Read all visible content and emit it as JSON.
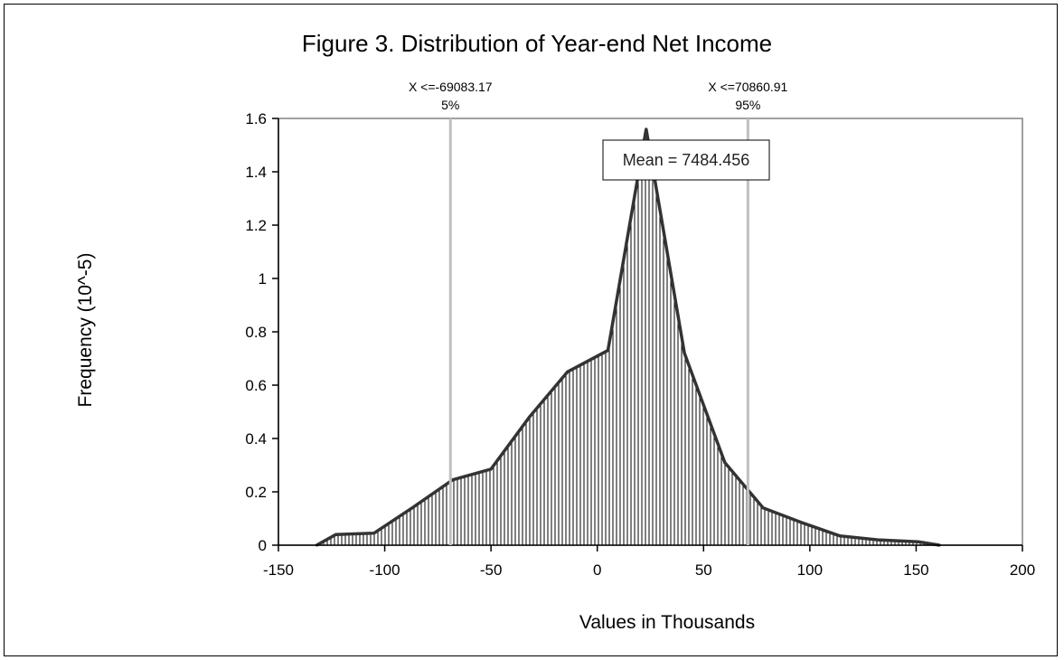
{
  "chart_data": {
    "type": "area",
    "title": "Figure 3. Distribution of Year-end Net Income",
    "xlabel": "Values in Thousands",
    "ylabel": "Frequency (10^-5)",
    "xlim": [
      -150,
      200
    ],
    "ylim": [
      0,
      1.6
    ],
    "x_ticks": [
      -150,
      -100,
      -50,
      0,
      50,
      100,
      150,
      200
    ],
    "x_tick_labels": [
      "-150",
      "-100",
      "-50",
      "0",
      "50",
      "100",
      "150",
      "200"
    ],
    "y_ticks": [
      0,
      0.2,
      0.4,
      0.6,
      0.8,
      1,
      1.2,
      1.4,
      1.6
    ],
    "y_tick_labels": [
      "0",
      "0.2",
      "0.4",
      "0.6",
      "0.8",
      "1",
      "1.2",
      "1.4",
      "1.6"
    ],
    "grid": false,
    "x": [
      -132,
      -123,
      -105,
      -87,
      -68,
      -50,
      -32,
      -14,
      5,
      23,
      41,
      60,
      78,
      96,
      114,
      132,
      151,
      161
    ],
    "y": [
      0,
      0.04,
      0.045,
      0.14,
      0.245,
      0.285,
      0.48,
      0.65,
      0.73,
      1.56,
      0.72,
      0.31,
      0.14,
      0.085,
      0.035,
      0.02,
      0.013,
      0
    ],
    "markers": [
      {
        "x": -69083.17,
        "value_label": "X <=-69083.17",
        "percent_label": "5%"
      },
      {
        "x": 70860.91,
        "value_label": "X <=70860.91",
        "percent_label": "95%"
      }
    ],
    "mean_label": "Mean = 7484.456",
    "colors": {
      "fill": "#ffffff",
      "hatch": "#000000",
      "outline": "#333333",
      "marker_line": "#c0c0c0",
      "plot_border": "#808080"
    }
  }
}
